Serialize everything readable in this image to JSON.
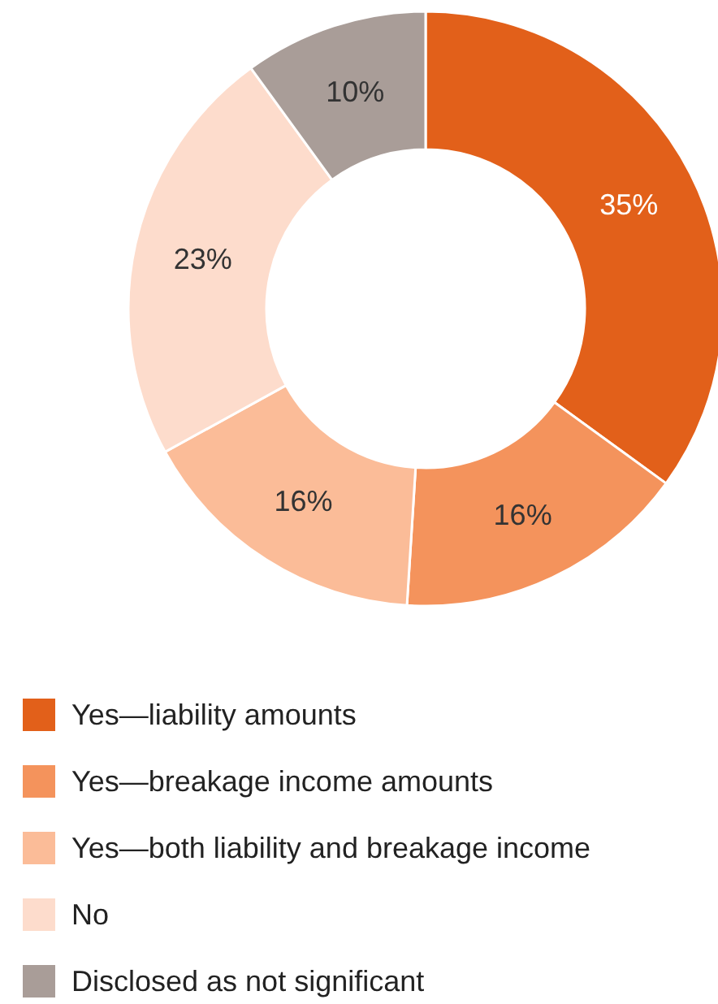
{
  "chart_data": {
    "type": "donut",
    "categories": [
      "Yes—liability amounts",
      "Yes—breakage income amounts",
      "Yes—both liability and breakage income",
      "No",
      "Disclosed as not significant"
    ],
    "values": [
      35,
      16,
      16,
      23,
      10
    ],
    "value_labels": [
      "35%",
      "16%",
      "16%",
      "23%",
      "10%"
    ],
    "colors": [
      "#e2601a",
      "#f4935c",
      "#fbbc98",
      "#fddccc",
      "#a99d98"
    ],
    "legend": "bottom"
  }
}
